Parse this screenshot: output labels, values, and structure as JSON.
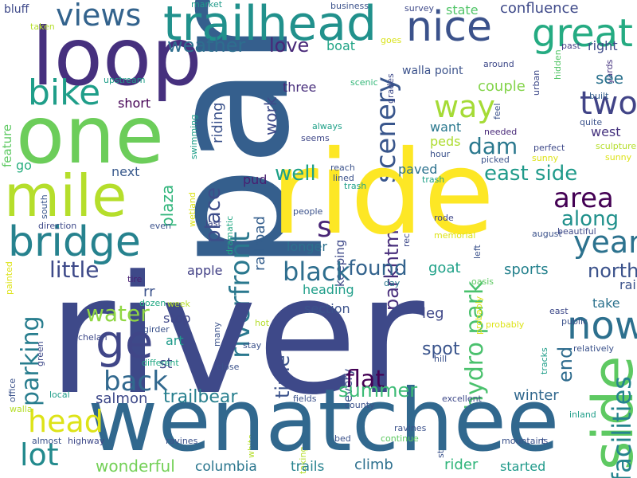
{
  "words": [
    {
      "text": "park",
      "color": "#355f8d"
    },
    {
      "text": "river",
      "color": "#3e4989"
    },
    {
      "text": "ride",
      "color": "#fde725"
    },
    {
      "text": "wenatchee",
      "color": "#31688e"
    },
    {
      "text": "one",
      "color": "#6ccd5a"
    },
    {
      "text": "loop",
      "color": "#46307e"
    },
    {
      "text": "mile",
      "color": "#b5de2b"
    },
    {
      "text": "bridge",
      "color": "#26828e"
    },
    {
      "text": "trailhead",
      "color": "#21918c"
    },
    {
      "text": "nice",
      "color": "#3b528b"
    },
    {
      "text": "views",
      "color": "#33638d"
    },
    {
      "text": "great",
      "color": "#25ab82"
    },
    {
      "text": "side",
      "color": "#5ec962"
    },
    {
      "text": "bike",
      "color": "#1f9e89"
    },
    {
      "text": "way",
      "color": "#a5db36"
    },
    {
      "text": "two",
      "color": "#414487"
    },
    {
      "text": "dam",
      "color": "#2a788e"
    },
    {
      "text": "now",
      "color": "#2d708e"
    },
    {
      "text": "ge",
      "color": "#404688"
    },
    {
      "text": "year",
      "color": "#2c728e"
    },
    {
      "text": "area",
      "color": "#440154"
    },
    {
      "text": "parking",
      "color": "#287d8e"
    },
    {
      "text": "head",
      "color": "#dde318"
    },
    {
      "text": "lot",
      "color": "#238a8d"
    },
    {
      "text": "back",
      "color": "#31688e"
    },
    {
      "text": "black",
      "color": "#2e6e8e"
    },
    {
      "text": "water",
      "color": "#90d743"
    },
    {
      "text": "riverfront",
      "color": "#2a788e"
    },
    {
      "text": "weather",
      "color": "#2e6e8e"
    },
    {
      "text": "love",
      "color": "#482878"
    },
    {
      "text": "scenery",
      "color": "#39568c"
    },
    {
      "text": "east side",
      "color": "#1f9a8a"
    },
    {
      "text": "along",
      "color": "#21918c"
    },
    {
      "text": "s",
      "color": "#482475"
    },
    {
      "text": "flat",
      "color": "#440154"
    },
    {
      "text": "found",
      "color": "#33638d"
    },
    {
      "text": "little",
      "color": "#3e4a89"
    },
    {
      "text": "summer",
      "color": "#3bbb75"
    },
    {
      "text": "trailbear",
      "color": "#277f8e"
    },
    {
      "text": "facilities",
      "color": "#25848e"
    },
    {
      "text": "hydro park",
      "color": "#4ac16d"
    },
    {
      "text": "north",
      "color": "#3b528b"
    },
    {
      "text": "place",
      "color": "#3d4d8a"
    },
    {
      "text": "well",
      "color": "#1fa188"
    },
    {
      "text": "parkhtml",
      "color": "#472d7b"
    },
    {
      "text": "end",
      "color": "#2f6c8e"
    },
    {
      "text": "time",
      "color": "#3b528b"
    },
    {
      "text": "work",
      "color": "#3e4a89"
    },
    {
      "text": "wonderful",
      "color": "#73d056"
    },
    {
      "text": "columbia",
      "color": "#2a768e"
    },
    {
      "text": "trails",
      "color": "#26828e"
    },
    {
      "text": "climb",
      "color": "#2d708e"
    },
    {
      "text": "rider",
      "color": "#31b57b"
    },
    {
      "text": "started",
      "color": "#1f9a8a"
    },
    {
      "text": "sports",
      "color": "#26828e"
    },
    {
      "text": "see",
      "color": "#2c728e"
    },
    {
      "text": "take",
      "color": "#2c728e"
    },
    {
      "text": "spot",
      "color": "#3a548c"
    },
    {
      "text": "leg",
      "color": "#3f4788"
    },
    {
      "text": "goat",
      "color": "#1fa188"
    },
    {
      "text": "salmon",
      "color": "#3e4989"
    },
    {
      "text": "winter",
      "color": "#31688e"
    },
    {
      "text": "confluence",
      "color": "#3e4989"
    },
    {
      "text": "state",
      "color": "#52c569"
    },
    {
      "text": "boat",
      "color": "#20a486"
    },
    {
      "text": "walla point",
      "color": "#3b528b"
    },
    {
      "text": "right",
      "color": "#3e4a89"
    },
    {
      "text": "couple",
      "color": "#84d44b"
    },
    {
      "text": "want",
      "color": "#2a788e"
    },
    {
      "text": "peds",
      "color": "#addc30"
    },
    {
      "text": "west",
      "color": "#46337f"
    },
    {
      "text": "paved",
      "color": "#2c728e"
    },
    {
      "text": "longer",
      "color": "#2d708e"
    },
    {
      "text": "apple",
      "color": "#424086"
    },
    {
      "text": "stop",
      "color": "#3f4788"
    },
    {
      "text": "art",
      "color": "#1e9b8a"
    },
    {
      "text": "st",
      "color": "#3e4989"
    },
    {
      "text": "rr",
      "color": "#3b528b"
    },
    {
      "text": "short",
      "color": "#440154"
    },
    {
      "text": "next",
      "color": "#38598c"
    },
    {
      "text": "three",
      "color": "#472d7b"
    },
    {
      "text": "riding",
      "color": "#3b528b"
    },
    {
      "text": "pud",
      "color": "#481f71"
    },
    {
      "text": "railroad",
      "color": "#355f8d"
    },
    {
      "text": "plaza",
      "color": "#31b57b"
    },
    {
      "text": "go",
      "color": "#29af7f"
    },
    {
      "text": "feature",
      "color": "#5ec962"
    },
    {
      "text": "bluff",
      "color": "#3e4989"
    },
    {
      "text": "taken",
      "color": "#b5de2b"
    },
    {
      "text": "market",
      "color": "#1f9a8a"
    },
    {
      "text": "business",
      "color": "#3b528b"
    },
    {
      "text": "survey",
      "color": "#3e4989"
    },
    {
      "text": "goes",
      "color": "#d8e219"
    },
    {
      "text": "scenic",
      "color": "#35b779"
    },
    {
      "text": "past",
      "color": "#433e85"
    },
    {
      "text": "didn",
      "color": "#2a788e"
    },
    {
      "text": "yards",
      "color": "#46337f"
    },
    {
      "text": "around",
      "color": "#3e4989"
    },
    {
      "text": "upstream",
      "color": "#1f9e89"
    },
    {
      "text": "enjoy",
      "color": "#2c728e"
    },
    {
      "text": "grades",
      "color": "#3e4989"
    },
    {
      "text": "feel",
      "color": "#3b528b"
    },
    {
      "text": "urban",
      "color": "#3e4989"
    },
    {
      "text": "hidden",
      "color": "#54c568"
    },
    {
      "text": "built",
      "color": "#355f8d"
    },
    {
      "text": "quite",
      "color": "#3b528b"
    },
    {
      "text": "needed",
      "color": "#482878"
    },
    {
      "text": "always",
      "color": "#1fa188"
    },
    {
      "text": "seems",
      "color": "#3f4788"
    },
    {
      "text": "hour",
      "color": "#3b528b"
    },
    {
      "text": "picked",
      "color": "#3b528b"
    },
    {
      "text": "perfect",
      "color": "#3e4989"
    },
    {
      "text": "sunny",
      "color": "#dde318"
    },
    {
      "text": "sculpture",
      "color": "#b5de2b"
    },
    {
      "text": "swimming",
      "color": "#1f9e89"
    },
    {
      "text": "wetland",
      "color": "#dde318"
    },
    {
      "text": "dramatic",
      "color": "#22a884"
    },
    {
      "text": "south",
      "color": "#39568c"
    },
    {
      "text": "direction",
      "color": "#3e4989"
    },
    {
      "text": "even",
      "color": "#3b528b"
    },
    {
      "text": "last",
      "color": "#3f4788"
    },
    {
      "text": "reach",
      "color": "#3b528b"
    },
    {
      "text": "lined",
      "color": "#3b528b"
    },
    {
      "text": "trash",
      "color": "#1fa188"
    },
    {
      "text": "recreation",
      "color": "#3e4989"
    },
    {
      "text": "people",
      "color": "#3b528b"
    },
    {
      "text": "rode",
      "color": "#3f4788"
    },
    {
      "text": "left",
      "color": "#3b528b"
    },
    {
      "text": "memorial",
      "color": "#dde318"
    },
    {
      "text": "august",
      "color": "#3b528b"
    },
    {
      "text": "beautiful",
      "color": "#3e4989"
    },
    {
      "text": "day",
      "color": "#2a788e"
    },
    {
      "text": "oasis",
      "color": "#5ec962"
    },
    {
      "text": "rail",
      "color": "#3b528b"
    },
    {
      "text": "tire",
      "color": "#481f71"
    },
    {
      "text": "keeping",
      "color": "#3e4989"
    },
    {
      "text": "dozen",
      "color": "#22a884"
    },
    {
      "text": "week",
      "color": "#b5de2b"
    },
    {
      "text": "girder",
      "color": "#3b528b"
    },
    {
      "text": "chelan",
      "color": "#3e4989"
    },
    {
      "text": "hot",
      "color": "#b5de2b"
    },
    {
      "text": "painted",
      "color": "#dde318"
    },
    {
      "text": "stay",
      "color": "#3b528b"
    },
    {
      "text": "heading",
      "color": "#1f9e89"
    },
    {
      "text": "many",
      "color": "#3b528b"
    },
    {
      "text": "top",
      "color": "#73d056"
    },
    {
      "text": "odabashian",
      "color": "#22a884"
    },
    {
      "text": "section",
      "color": "#3b528b"
    },
    {
      "text": "every",
      "color": "#3b528b"
    },
    {
      "text": "east",
      "color": "#3e4989"
    },
    {
      "text": "probably",
      "color": "#dde318"
    },
    {
      "text": "public",
      "color": "#3b528b"
    },
    {
      "text": "capital",
      "color": "#3b528b"
    },
    {
      "text": "tracks",
      "color": "#1f9e89"
    },
    {
      "text": "relatively",
      "color": "#3b528b"
    },
    {
      "text": "green",
      "color": "#3e4989"
    },
    {
      "text": "different",
      "color": "#22a884"
    },
    {
      "text": "close",
      "color": "#3b528b"
    },
    {
      "text": "hill",
      "color": "#3b528b"
    },
    {
      "text": "office",
      "color": "#3b528b"
    },
    {
      "text": "local",
      "color": "#1f9e89"
    },
    {
      "text": "fields",
      "color": "#3b528b"
    },
    {
      "text": "excellent",
      "color": "#3e4989"
    },
    {
      "text": "county",
      "color": "#3b528b"
    },
    {
      "text": "inland",
      "color": "#1f9e89"
    },
    {
      "text": "steep",
      "color": "#3b528b"
    },
    {
      "text": "walla",
      "color": "#b5de2b"
    },
    {
      "text": "ravines",
      "color": "#3b528b"
    },
    {
      "text": "almost",
      "color": "#3b528b"
    },
    {
      "text": "highway",
      "color": "#3e4989"
    },
    {
      "text": "white",
      "color": "#b5de2b"
    },
    {
      "text": "taking",
      "color": "#b5de2b"
    },
    {
      "text": "bed",
      "color": "#3b528b"
    },
    {
      "text": "continue",
      "color": "#5ec962"
    },
    {
      "text": "mountains",
      "color": "#3b528b"
    },
    {
      "text": "t",
      "color": "#3b528b"
    }
  ]
}
